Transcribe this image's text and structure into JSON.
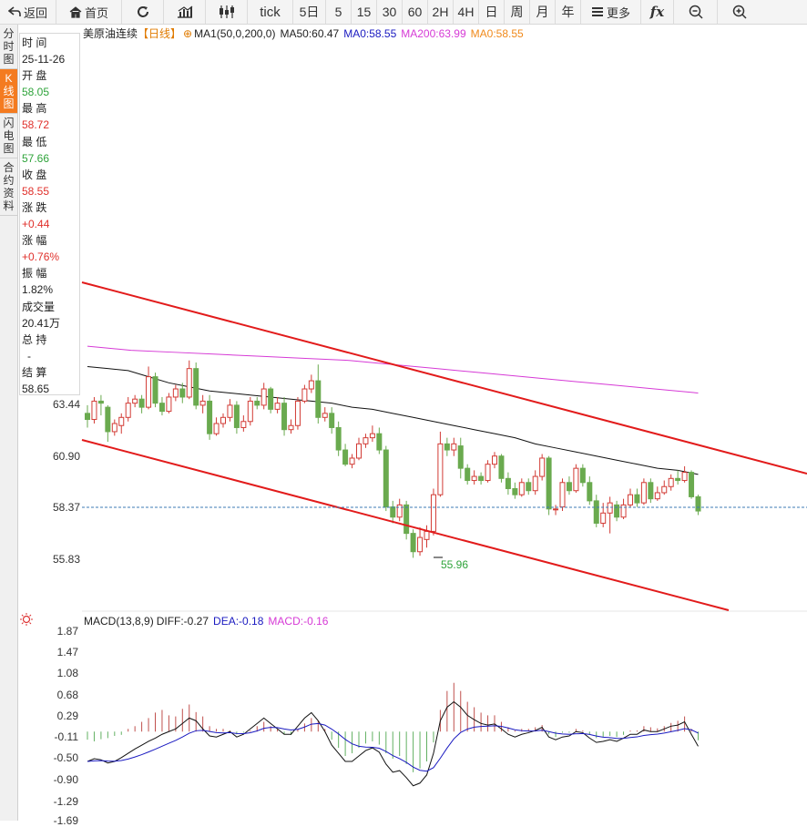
{
  "toolbar": {
    "back_label": "返回",
    "home_label": "首页",
    "tick_label": "tick",
    "periods": [
      "5日",
      "5",
      "15",
      "30",
      "60",
      "2H",
      "4H",
      "日",
      "周",
      "月",
      "年"
    ],
    "more_label": "更多",
    "fx_label": "fx"
  },
  "sidebar": {
    "tabs": [
      {
        "label": [
          "分",
          "时",
          "图"
        ],
        "active": false
      },
      {
        "label": [
          "K",
          "线",
          "图"
        ],
        "active": true
      },
      {
        "label": [
          "闪",
          "电",
          "图"
        ],
        "active": false
      },
      {
        "label": [
          "合",
          "约",
          "资",
          "料"
        ],
        "active": false
      }
    ]
  },
  "info": {
    "time_label": "时 间",
    "time": "25-11-26",
    "open_label": "开 盘",
    "open": "58.05",
    "high_label": "最 高",
    "high": "58.72",
    "low_label": "最 低",
    "low": "57.66",
    "close_label": "收 盘",
    "close": "58.55",
    "change_label": "涨 跌",
    "change": "+0.44",
    "pct_label": "涨 幅",
    "pct": "+0.76%",
    "amp_label": "振 幅",
    "amp": "1.82%",
    "vol_label": "成交量",
    "vol": "20.41万",
    "oi_label": "总 持",
    "oi": "-",
    "settle_label": "结 算",
    "settle": "58.65"
  },
  "legend": {
    "symbol": "美原油连续",
    "period": "【日线】",
    "ma_main": "MA1(50,0,200,0)",
    "ma50": "MA50:60.47",
    "ma0a": "MA0:58.55",
    "ma200": "MA200:63.99",
    "ma0b": "MA0:58.55"
  },
  "macd_legend": {
    "name": "MACD(13,8,9)",
    "diff": "DIFF:-0.27",
    "dea": "DEA:-0.18",
    "macd": "MACD:-0.16"
  },
  "price_axis": [
    "63.44",
    "60.90",
    "58.37",
    "55.83"
  ],
  "macd_axis": [
    "1.87",
    "1.47",
    "1.08",
    "0.68",
    "0.29",
    "-0.11",
    "-0.50",
    "-0.90",
    "-1.29",
    "-1.69"
  ],
  "low_marker": "55.96",
  "colors": {
    "up": "#d23b35",
    "down": "#6aaa4f",
    "trend": "#e21b1b",
    "ma200": "#d63ad6",
    "ma50": "#111111",
    "last": "#3d7bb5",
    "dea": "#1a1ac0"
  },
  "chart_data": {
    "type": "candlestick",
    "price_ylim": [
      54.0,
      67.0
    ],
    "candles": [
      [
        63.0,
        62.7,
        63.4,
        62.3
      ],
      [
        62.7,
        63.6,
        63.8,
        62.5
      ],
      [
        63.6,
        63.5,
        63.9,
        62.9
      ],
      [
        63.3,
        62.1,
        63.4,
        61.6
      ],
      [
        62.1,
        62.5,
        62.7,
        61.9
      ],
      [
        62.4,
        62.8,
        63.0,
        62.0
      ],
      [
        62.8,
        63.5,
        63.8,
        62.6
      ],
      [
        63.5,
        63.7,
        63.9,
        63.3
      ],
      [
        63.7,
        63.3,
        63.9,
        63.0
      ],
      [
        63.3,
        64.8,
        65.3,
        63.2
      ],
      [
        64.8,
        63.5,
        65.0,
        63.3
      ],
      [
        63.5,
        63.1,
        63.8,
        62.9
      ],
      [
        63.1,
        63.8,
        64.0,
        63.0
      ],
      [
        63.8,
        64.2,
        64.4,
        63.6
      ],
      [
        64.2,
        63.8,
        64.5,
        63.5
      ],
      [
        63.8,
        65.2,
        65.6,
        63.7
      ],
      [
        65.2,
        63.4,
        65.5,
        63.2
      ],
      [
        63.4,
        63.6,
        63.9,
        63.0
      ],
      [
        63.6,
        62.0,
        63.9,
        61.7
      ],
      [
        62.0,
        62.5,
        62.8,
        61.9
      ],
      [
        62.5,
        62.8,
        63.0,
        62.3
      ],
      [
        62.8,
        63.4,
        63.7,
        62.6
      ],
      [
        63.4,
        62.3,
        63.6,
        62.0
      ],
      [
        62.3,
        62.6,
        62.9,
        62.1
      ],
      [
        62.6,
        63.6,
        63.8,
        62.4
      ],
      [
        63.6,
        63.4,
        63.8,
        63.2
      ],
      [
        63.4,
        64.2,
        64.5,
        63.2
      ],
      [
        64.2,
        63.2,
        64.3,
        63.0
      ],
      [
        63.2,
        63.5,
        63.8,
        63.0
      ],
      [
        63.5,
        62.2,
        63.8,
        61.9
      ],
      [
        62.2,
        62.4,
        62.7,
        62.0
      ],
      [
        62.4,
        63.6,
        63.8,
        62.2
      ],
      [
        63.6,
        64.2,
        64.4,
        63.5
      ],
      [
        64.2,
        64.6,
        64.9,
        64.0
      ],
      [
        64.6,
        62.8,
        65.4,
        62.5
      ],
      [
        62.8,
        63.0,
        63.3,
        62.6
      ],
      [
        63.0,
        62.3,
        63.3,
        62.0
      ],
      [
        62.3,
        61.2,
        62.6,
        60.9
      ],
      [
        61.2,
        60.5,
        61.5,
        60.4
      ],
      [
        60.5,
        60.8,
        61.0,
        60.3
      ],
      [
        60.8,
        61.5,
        61.8,
        60.7
      ],
      [
        61.5,
        61.8,
        62.0,
        61.3
      ],
      [
        61.8,
        62.0,
        62.4,
        61.6
      ],
      [
        62.0,
        61.2,
        62.3,
        61.0
      ],
      [
        61.2,
        58.4,
        61.4,
        58.2
      ],
      [
        58.4,
        57.9,
        58.7,
        57.6
      ],
      [
        57.9,
        58.5,
        58.8,
        57.7
      ],
      [
        58.5,
        57.1,
        58.7,
        56.8
      ],
      [
        57.1,
        56.2,
        57.3,
        55.9
      ],
      [
        56.2,
        56.9,
        57.4,
        56.0
      ],
      [
        56.8,
        57.2,
        57.5,
        56.4
      ],
      [
        57.2,
        59.0,
        59.3,
        57.0
      ],
      [
        59.0,
        61.5,
        62.1,
        58.9
      ],
      [
        61.5,
        61.2,
        61.8,
        60.9
      ],
      [
        61.2,
        61.5,
        61.8,
        60.9
      ],
      [
        61.4,
        60.3,
        61.8,
        59.8
      ],
      [
        60.3,
        59.7,
        60.5,
        59.5
      ],
      [
        59.7,
        59.9,
        60.2,
        59.5
      ],
      [
        59.9,
        59.7,
        60.1,
        59.5
      ],
      [
        59.7,
        60.5,
        60.7,
        59.6
      ],
      [
        60.5,
        60.9,
        61.1,
        60.3
      ],
      [
        60.9,
        59.8,
        61.0,
        59.6
      ],
      [
        59.8,
        59.3,
        60.1,
        59.0
      ],
      [
        59.3,
        59.0,
        59.6,
        58.8
      ],
      [
        59.0,
        59.6,
        59.8,
        58.9
      ],
      [
        59.6,
        59.2,
        59.8,
        59.0
      ],
      [
        59.2,
        59.9,
        60.2,
        59.0
      ],
      [
        59.9,
        60.8,
        61.0,
        59.7
      ],
      [
        60.8,
        58.3,
        60.9,
        58.0
      ],
      [
        58.3,
        58.3,
        58.5,
        58.0
      ],
      [
        58.4,
        59.6,
        59.8,
        58.2
      ],
      [
        59.6,
        59.2,
        59.9,
        59.0
      ],
      [
        59.2,
        60.3,
        60.5,
        59.1
      ],
      [
        60.3,
        59.6,
        60.5,
        59.4
      ],
      [
        59.6,
        58.7,
        59.9,
        58.5
      ],
      [
        58.7,
        57.6,
        59.0,
        57.4
      ],
      [
        57.6,
        58.1,
        58.6,
        57.4
      ],
      [
        58.1,
        58.6,
        58.9,
        57.1
      ],
      [
        58.5,
        57.9,
        58.7,
        57.7
      ],
      [
        57.9,
        58.5,
        58.8,
        57.8
      ],
      [
        58.5,
        59.0,
        59.3,
        58.4
      ],
      [
        59.0,
        58.6,
        59.3,
        58.4
      ],
      [
        58.6,
        59.6,
        59.8,
        58.5
      ],
      [
        59.6,
        58.8,
        59.8,
        58.6
      ],
      [
        58.8,
        59.1,
        59.4,
        58.7
      ],
      [
        59.1,
        59.4,
        59.7,
        59.0
      ],
      [
        59.4,
        59.8,
        60.0,
        59.2
      ],
      [
        59.8,
        59.7,
        60.2,
        59.5
      ],
      [
        59.7,
        60.1,
        60.4,
        59.6
      ],
      [
        60.1,
        58.9,
        60.2,
        58.8
      ],
      [
        58.9,
        58.2,
        59.0,
        58.0
      ]
    ],
    "ma50": [
      65.3,
      65.2,
      65.1,
      64.8,
      64.5,
      64.3,
      64.1,
      64.0,
      63.9,
      63.8,
      63.7,
      63.6,
      63.5,
      63.3,
      63.2,
      63.0,
      62.8,
      62.6,
      62.4,
      62.2,
      62.0,
      61.8,
      61.5,
      61.3,
      61.1,
      60.9,
      60.7,
      60.5,
      60.3,
      60.2,
      60.0
    ],
    "ma200": [
      66.3,
      66.1,
      66.0,
      65.9,
      65.8,
      65.7,
      65.6,
      65.4,
      65.2,
      65.0,
      64.8,
      64.6,
      64.4,
      64.2,
      64.0
    ],
    "last_price": 58.37,
    "low_price": 55.96,
    "macd_ylim": [
      -1.69,
      1.87
    ],
    "macd": [
      -0.15,
      -0.18,
      -0.14,
      -0.12,
      -0.08,
      -0.06,
      0.05,
      0.1,
      0.18,
      0.25,
      0.35,
      0.4,
      0.3,
      0.28,
      0.42,
      0.5,
      0.36,
      0.28,
      0.1,
      0.05,
      0.05,
      0.02,
      -0.05,
      -0.02,
      0.02,
      0.1,
      0.18,
      0.1,
      0.04,
      -0.05,
      -0.06,
      0.05,
      0.15,
      0.25,
      0.2,
      0.05,
      -0.15,
      -0.3,
      -0.45,
      -0.4,
      -0.3,
      -0.22,
      -0.18,
      -0.24,
      -0.4,
      -0.5,
      -0.45,
      -0.6,
      -0.75,
      -0.68,
      -0.55,
      -0.2,
      0.4,
      0.75,
      0.9,
      0.75,
      0.55,
      0.45,
      0.35,
      0.3,
      0.3,
      0.18,
      0.08,
      0.02,
      0.05,
      0.05,
      0.08,
      0.12,
      -0.05,
      -0.1,
      -0.02,
      -0.02,
      0.05,
      0.02,
      -0.06,
      -0.12,
      -0.1,
      -0.08,
      -0.1,
      -0.06,
      0.02,
      0.02,
      0.1,
      0.08,
      0.06,
      0.1,
      0.16,
      0.2,
      0.28,
      0.05,
      -0.16
    ],
    "diff": [
      -0.55,
      -0.5,
      -0.52,
      -0.58,
      -0.55,
      -0.48,
      -0.4,
      -0.32,
      -0.25,
      -0.18,
      -0.12,
      -0.05,
      0.0,
      0.05,
      0.15,
      0.25,
      0.2,
      0.05,
      -0.08,
      -0.1,
      -0.05,
      0.0,
      -0.1,
      -0.05,
      0.05,
      0.15,
      0.25,
      0.15,
      0.05,
      -0.05,
      -0.05,
      0.1,
      0.25,
      0.35,
      0.2,
      0.0,
      -0.25,
      -0.4,
      -0.55,
      -0.55,
      -0.45,
      -0.35,
      -0.3,
      -0.38,
      -0.6,
      -0.75,
      -0.72,
      -0.85,
      -1.0,
      -0.95,
      -0.8,
      -0.4,
      0.2,
      0.45,
      0.55,
      0.45,
      0.3,
      0.22,
      0.15,
      0.12,
      0.14,
      0.05,
      -0.05,
      -0.1,
      -0.05,
      -0.02,
      0.02,
      0.08,
      -0.1,
      -0.15,
      -0.1,
      -0.08,
      0.0,
      -0.02,
      -0.12,
      -0.2,
      -0.18,
      -0.15,
      -0.18,
      -0.12,
      -0.05,
      -0.05,
      0.03,
      0.0,
      0.0,
      0.05,
      0.1,
      0.12,
      0.18,
      -0.05,
      -0.27
    ]
  }
}
